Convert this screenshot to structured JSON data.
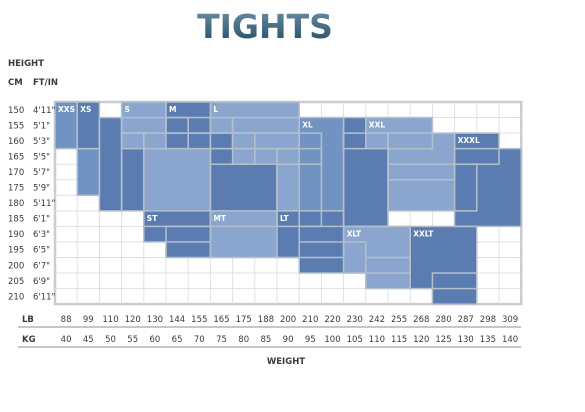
{
  "title": "TIGHTS",
  "header": {
    "height": "HEIGHT",
    "cm": "CM",
    "ftin": "FT/IN"
  },
  "axis": {
    "lb_label": "LB",
    "kg_label": "KG",
    "weight_label": "WEIGHT"
  },
  "colors": {
    "title_top": "#6f93a8",
    "title_bottom": "#1f4a63",
    "zone_dark": "#5b7cb0",
    "zone_medium": "#7193c2",
    "zone_light": "#8aa6cf",
    "zone_border": "#b4bfcc",
    "grid": "#dde1e6",
    "frame": "#c9cdd2"
  },
  "chart_data": {
    "type": "heatmap",
    "title": "TIGHTS",
    "xlabel": "WEIGHT",
    "ylabel": "HEIGHT",
    "height_cm": [
      "150",
      "155",
      "160",
      "165",
      "170",
      "175",
      "180",
      "185",
      "190",
      "195",
      "200",
      "205",
      "210"
    ],
    "height_ftin": [
      "4'11\"",
      "5'1\"",
      "5'3\"",
      "5'5\"",
      "5'7\"",
      "5'9\"",
      "5'11\"",
      "6'1\"",
      "6'3\"",
      "6'5\"",
      "6'7\"",
      "6'9\"",
      "6'11\""
    ],
    "weight_lb": [
      "88",
      "99",
      "110",
      "120",
      "130",
      "144",
      "155",
      "165",
      "175",
      "188",
      "200",
      "210",
      "220",
      "230",
      "242",
      "255",
      "268",
      "280",
      "287",
      "298",
      "309"
    ],
    "weight_kg": [
      "40",
      "45",
      "50",
      "55",
      "60",
      "65",
      "70",
      "75",
      "80",
      "85",
      "90",
      "95",
      "100",
      "105",
      "110",
      "115",
      "120",
      "125",
      "130",
      "135",
      "140"
    ],
    "sizes": [
      {
        "name": "XXS",
        "shade": "medium",
        "cells": [
          [
            0,
            0,
            0,
            2
          ],
          [
            1,
            1,
            3,
            5
          ]
        ]
      },
      {
        "name": "XS",
        "shade": "dark",
        "cells": [
          [
            1,
            1,
            0,
            2
          ],
          [
            2,
            2,
            1,
            6
          ],
          [
            3,
            3,
            2,
            6
          ]
        ]
      },
      {
        "name": "S",
        "shade": "light",
        "cells": [
          [
            3,
            4,
            0,
            1
          ],
          [
            3,
            5,
            1,
            2
          ],
          [
            4,
            6,
            2,
            7
          ]
        ]
      },
      {
        "name": "M",
        "shade": "dark",
        "cells": [
          [
            5,
            6,
            0,
            1
          ],
          [
            5,
            7,
            1,
            2
          ],
          [
            7,
            8,
            2,
            3
          ],
          [
            7,
            9,
            3,
            7
          ]
        ]
      },
      {
        "name": "L",
        "shade": "light",
        "cells": [
          [
            7,
            10,
            0,
            1
          ],
          [
            8,
            10,
            1,
            2
          ],
          [
            8,
            11,
            2,
            3
          ],
          [
            10,
            11,
            3,
            7
          ]
        ]
      },
      {
        "name": "XL",
        "shade": "medium",
        "cells": [
          [
            11,
            12,
            1,
            7
          ]
        ]
      },
      {
        "name": "XL (upper)",
        "shade": "dark",
        "cells": [
          [
            13,
            13,
            1,
            2
          ],
          [
            13,
            14,
            2,
            7
          ]
        ]
      },
      {
        "name": "XXL",
        "shade": "light",
        "cells": [
          [
            14,
            16,
            1,
            2
          ],
          [
            15,
            17,
            2,
            4
          ],
          [
            15,
            18,
            4,
            6
          ]
        ]
      },
      {
        "name": "XXXL",
        "shade": "dark",
        "cells": [
          [
            18,
            19,
            2,
            3
          ],
          [
            18,
            20,
            3,
            7
          ]
        ]
      },
      {
        "name": "ST",
        "shade": "dark",
        "cells": [
          [
            4,
            6,
            7,
            8
          ],
          [
            5,
            6,
            8,
            9
          ]
        ]
      },
      {
        "name": "MT",
        "shade": "light",
        "cells": [
          [
            7,
            10,
            7,
            9
          ]
        ]
      },
      {
        "name": "LT",
        "shade": "dark",
        "cells": [
          [
            10,
            12,
            7,
            9
          ],
          [
            11,
            13,
            9,
            10
          ]
        ]
      },
      {
        "name": "XLT",
        "shade": "light",
        "cells": [
          [
            13,
            15,
            8,
            10
          ],
          [
            14,
            15,
            10,
            11
          ]
        ]
      },
      {
        "name": "XXLT",
        "shade": "dark",
        "cells": [
          [
            16,
            18,
            8,
            11
          ],
          [
            17,
            18,
            11,
            12
          ]
        ]
      }
    ]
  }
}
